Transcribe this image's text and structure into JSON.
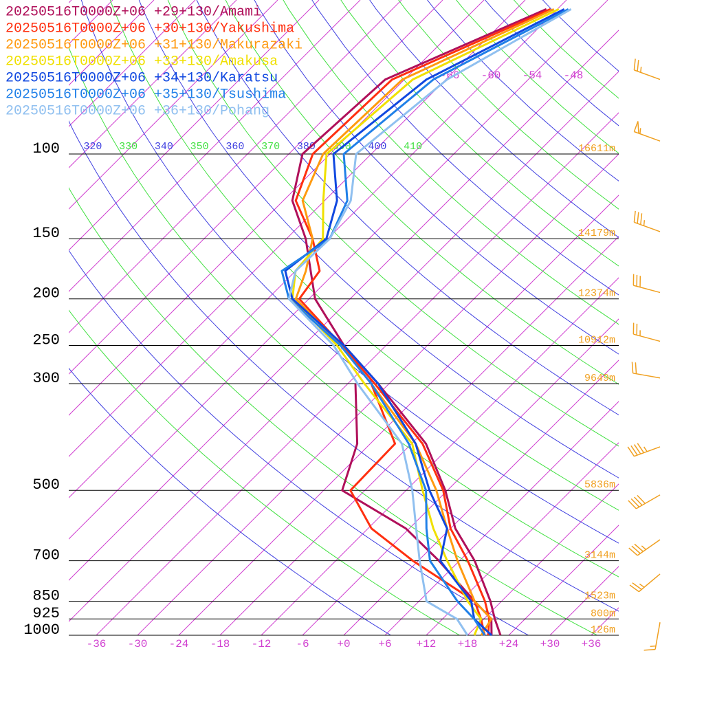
{
  "chart_data": {
    "type": "skewt",
    "pressure_levels": [
      1000,
      925,
      850,
      700,
      600,
      500,
      400,
      300,
      250,
      200,
      175,
      150,
      125,
      100,
      70,
      50
    ],
    "series": [
      {
        "name": "20250516T0000Z+06 +29+130/Amami",
        "color": "#b0105a",
        "values": [
          22.8,
          19.6,
          16.4,
          8.2,
          0.7,
          -6.3,
          -15.9,
          -31.6,
          -42.1,
          -53.1,
          -57.8,
          -63.2,
          -70.7,
          -76,
          -74.8,
          -61.6
        ]
      },
      {
        "name": "20250516T0000Z+06 +30+130/Yakushima",
        "color": "#ff3010",
        "values": [
          21,
          18.8,
          15.6,
          7.2,
          0,
          -6.6,
          -16.4,
          -32.1,
          -42.4,
          -55.4,
          -56.5,
          -62.2,
          -70.2,
          -74.5,
          -73.8,
          -61
        ]
      },
      {
        "name": "20250516T0000Z+06 +31+130/Makurazaki",
        "color": "#ff9a10",
        "values": [
          20,
          19.1,
          14.1,
          5.7,
          -0.5,
          -7.6,
          -17.4,
          -32.6,
          -42.6,
          -55.9,
          -58.5,
          -62.2,
          -69.2,
          -73,
          -72.3,
          -60.5
        ]
      },
      {
        "name": "20250516T0000Z+06 +33+130/Amakusa",
        "color": "#f0e000",
        "values": [
          19,
          17.6,
          13.1,
          4.2,
          -2.5,
          -9.6,
          -17.9,
          -33.6,
          -43.1,
          -56.4,
          -60,
          -60.7,
          -66.2,
          -72.5,
          -70.8,
          -59.8
        ]
      },
      {
        "name": "20250516T0000Z+06 +34+130/Karatsu",
        "color": "#1048e0",
        "values": [
          21.5,
          16.6,
          13.6,
          3.2,
          -0.5,
          -8.6,
          -17.4,
          -31.6,
          -42.1,
          -56.4,
          -61.5,
          -60.2,
          -64.2,
          -71.5,
          -68.8,
          -59
        ]
      },
      {
        "name": "20250516T0000Z+06 +35+130/Tsushima",
        "color": "#2080e8",
        "values": [
          20.5,
          16.6,
          11.6,
          1.7,
          -3.5,
          -9.1,
          -18.4,
          -32.6,
          -42.6,
          -56.9,
          -62,
          -59.7,
          -62.7,
          -70,
          -67.8,
          -58.4
        ]
      },
      {
        "name": "20250516T0000Z+06 +36+130/Pohang",
        "color": "#90c0f0",
        "values": [
          18,
          14.1,
          7.1,
          0.2,
          -5,
          -11.1,
          -19.4,
          -34.6,
          -43.6,
          -56.9,
          -60,
          -59.7,
          -62.2,
          -68.2,
          -65.8,
          -58
        ]
      }
    ],
    "dewpoints": [
      {
        "color": "#b0105a",
        "values": [
          21.5,
          19.1,
          14.1,
          3,
          -6.5,
          -21.3,
          -25.9,
          -34.9,
          null,
          null,
          null,
          null,
          null,
          null,
          null,
          null
        ]
      },
      {
        "color": "#ff3010",
        "values": [
          20.5,
          17.6,
          14.1,
          -0.8,
          -11.5,
          -20.1,
          -20.4,
          -32.6,
          null,
          null,
          null,
          null,
          null,
          null,
          null,
          null
        ]
      }
    ],
    "yticks": [
      100,
      150,
      200,
      250,
      300,
      500,
      700,
      850,
      925,
      1000
    ],
    "height_labels": [
      "16611m",
      "14179m",
      "12374m",
      "10912m",
      "9649m",
      "5836m",
      "3144m",
      "1523m",
      "800m",
      "126m"
    ],
    "xticks": [
      -36,
      -30,
      -24,
      -18,
      -12,
      -6,
      {
        "value": 0,
        "label": "+0"
      },
      {
        "value": 6,
        "label": "+6"
      },
      {
        "value": 12,
        "label": "+12"
      },
      {
        "value": 18,
        "label": "+18"
      },
      {
        "value": 24,
        "label": "+24"
      },
      {
        "value": 30,
        "label": "+30"
      },
      {
        "value": 36,
        "label": "+36"
      }
    ],
    "isotherm_labels": [
      -66,
      -60,
      -54,
      -48
    ],
    "theta_labels": [
      320,
      330,
      340,
      350,
      360,
      370,
      380,
      390,
      400,
      410
    ],
    "winds": [
      {
        "pressure": 70,
        "direction": 290,
        "speed": 25
      },
      {
        "pressure": 94,
        "direction": 290,
        "speed": 55
      },
      {
        "pressure": 145,
        "direction": 290,
        "speed": 35
      },
      {
        "pressure": 194,
        "direction": 285,
        "speed": 30
      },
      {
        "pressure": 245,
        "direction": 285,
        "speed": 25
      },
      {
        "pressure": 292,
        "direction": 280,
        "speed": 20
      },
      {
        "pressure": 406,
        "direction": 250,
        "speed": 45
      },
      {
        "pressure": 511,
        "direction": 240,
        "speed": 40
      },
      {
        "pressure": 633,
        "direction": 235,
        "speed": 35
      },
      {
        "pressure": 746,
        "direction": 230,
        "speed": 25
      },
      {
        "pressure": 940,
        "direction": 190,
        "speed": 15
      }
    ]
  }
}
